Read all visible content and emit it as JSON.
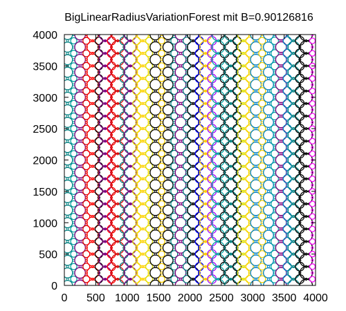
{
  "chart_data": {
    "type": "scatter",
    "title": "BigLinearRadiusVariationForest mit B=0.90126816",
    "xlabel": "",
    "ylabel": "",
    "xlim": [
      0,
      4000
    ],
    "ylim": [
      0,
      4000
    ],
    "x_ticks": [
      "0",
      "500",
      "1000",
      "1500",
      "2000",
      "2500",
      "3000",
      "3500",
      "4000"
    ],
    "y_ticks": [
      "0",
      "500",
      "1000",
      "1500",
      "2000",
      "2500",
      "3000",
      "3500",
      "4000"
    ],
    "grid": false,
    "legend": "none",
    "markers": "circles of varying radius arranged in vertical columns",
    "column_x": [
      50,
      150,
      250,
      350,
      450,
      550,
      650,
      750,
      850,
      950,
      1050,
      1150,
      1250,
      1350,
      1450,
      1550,
      1650,
      1750,
      1850,
      1950,
      2050,
      2150,
      2250,
      2350,
      2450,
      2550,
      2650,
      2750,
      2850,
      2950,
      3050,
      3150,
      3250,
      3350,
      3450,
      3550,
      3650,
      3750,
      3850,
      3950
    ],
    "column_radius": [
      80,
      50,
      85,
      55,
      90,
      60,
      95,
      65,
      100,
      65,
      95,
      60,
      90,
      55,
      85,
      50,
      80,
      55,
      85,
      60,
      90,
      65,
      95,
      70,
      100,
      70,
      95,
      65,
      90,
      60,
      85,
      55,
      80,
      60,
      85,
      65,
      90,
      70,
      100,
      45
    ],
    "column_colors": [
      "#008080",
      "#00a0a0",
      "#800080",
      "#d00000",
      "#ff0000",
      "#000000",
      "#800080",
      "#ff0000",
      "#d00000",
      "#008080",
      "#800080",
      "#e0e000",
      "#ffd000",
      "#e0e000",
      "#000000",
      "#ffd000",
      "#000000",
      "#008080",
      "#800080",
      "#008080",
      "#000000",
      "#0000ff",
      "#ffd000",
      "#a000ff",
      "#00a0a0",
      "#000000",
      "#008080",
      "#000000",
      "#e0e000",
      "#ffd000",
      "#0080c0",
      "#ffd000",
      "#0080c0",
      "#00a0a0",
      "#800080",
      "#0080c0",
      "#008080",
      "#000000",
      "#000000",
      "#ff00ff"
    ],
    "row_spacing": 200
  }
}
